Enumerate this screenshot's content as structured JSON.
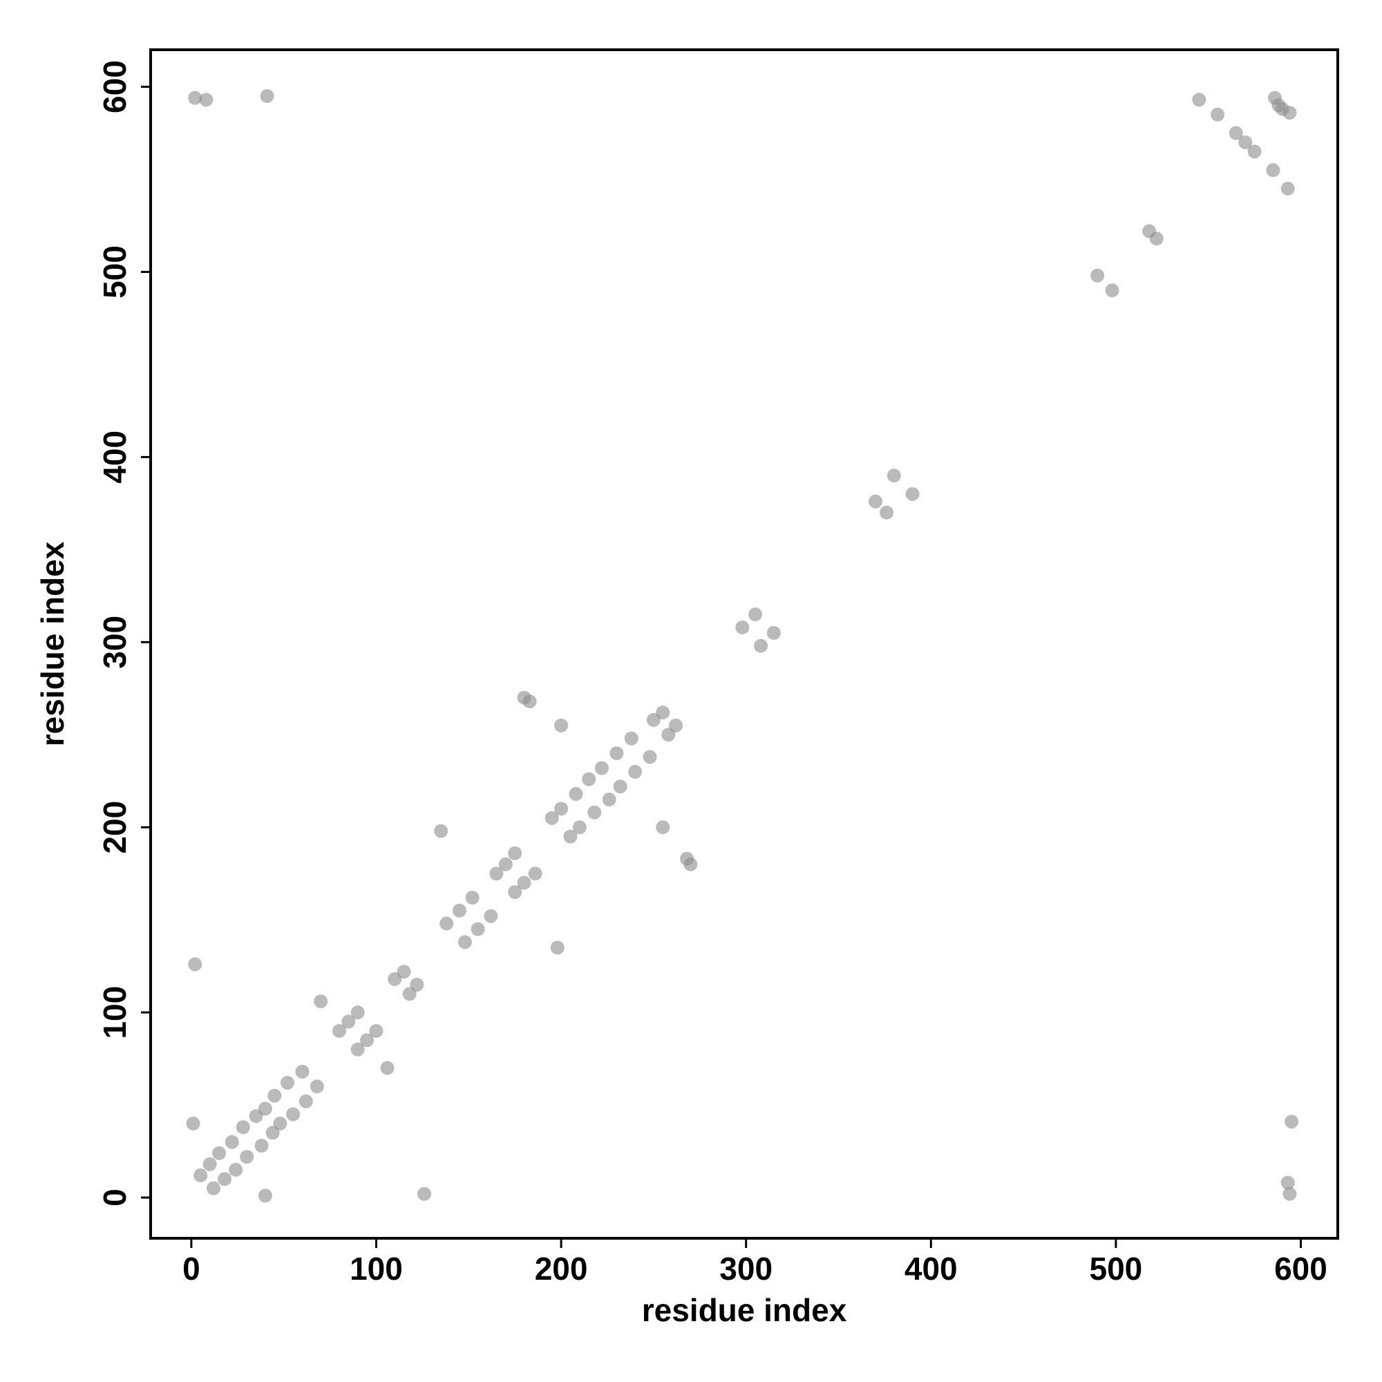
{
  "chart_data": {
    "type": "scatter",
    "x_label": "residue index",
    "y_label": "residue index",
    "x": [
      5,
      12,
      10,
      18,
      15,
      24,
      22,
      30,
      28,
      38,
      35,
      44,
      40,
      48,
      45,
      55,
      52,
      62,
      60,
      68,
      80,
      90,
      85,
      95,
      90,
      100,
      110,
      118,
      115,
      122,
      138,
      148,
      145,
      155,
      152,
      162,
      165,
      175,
      170,
      180,
      175,
      186,
      195,
      205,
      200,
      210,
      208,
      218,
      215,
      226,
      222,
      232,
      230,
      240,
      238,
      248,
      250,
      258,
      255,
      262,
      2,
      126,
      2,
      594,
      8,
      593,
      1,
      40,
      41,
      595,
      70,
      106,
      135,
      198,
      180,
      270,
      200,
      255,
      183,
      268,
      298,
      308,
      305,
      315,
      380,
      390,
      370,
      376,
      490,
      498,
      518,
      522,
      545,
      593,
      555,
      585,
      565,
      575,
      570,
      588,
      590,
      586,
      594
    ],
    "y": [
      12,
      5,
      18,
      10,
      24,
      15,
      30,
      22,
      38,
      28,
      44,
      35,
      48,
      40,
      55,
      45,
      62,
      52,
      68,
      60,
      90,
      80,
      95,
      85,
      100,
      90,
      118,
      110,
      122,
      115,
      148,
      138,
      155,
      145,
      162,
      152,
      175,
      165,
      180,
      170,
      186,
      175,
      205,
      195,
      210,
      200,
      218,
      208,
      226,
      215,
      232,
      222,
      240,
      230,
      248,
      238,
      258,
      250,
      262,
      255,
      126,
      2,
      594,
      2,
      593,
      8,
      40,
      1,
      595,
      41,
      106,
      70,
      198,
      135,
      270,
      180,
      255,
      200,
      268,
      183,
      308,
      298,
      315,
      305,
      390,
      380,
      376,
      370,
      498,
      490,
      522,
      518,
      593,
      545,
      585,
      555,
      575,
      565,
      570,
      590,
      588,
      594,
      586
    ],
    "color": "#8c8c8c",
    "xlim": [
      -22,
      620
    ],
    "ylim": [
      -22,
      620
    ],
    "xticks": [
      0,
      100,
      200,
      300,
      400,
      500,
      600
    ],
    "yticks": [
      0,
      100,
      200,
      300,
      400,
      500,
      600
    ]
  }
}
